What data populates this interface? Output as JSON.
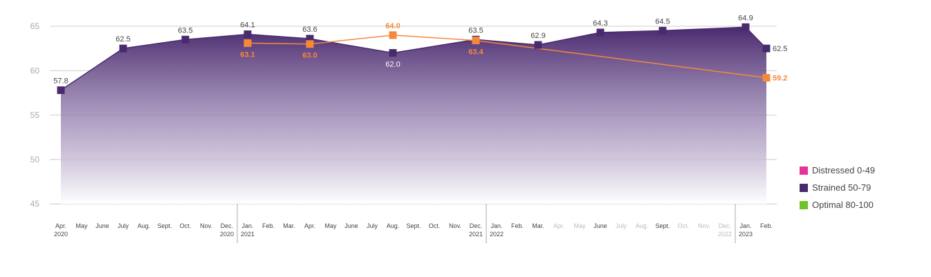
{
  "chart_data": {
    "type": "area",
    "ylim": [
      45,
      66
    ],
    "yticks": [
      45,
      50,
      55,
      60,
      65
    ],
    "grid": true,
    "legend_position": "right",
    "colors": {
      "strained": "#4a2a6e",
      "orange": "#f5893b",
      "distressed": "#e8329b",
      "optimal": "#6cc428",
      "grid": "#cccccc",
      "tick_dark": "#444444",
      "tick_light": "#bbbbbb"
    },
    "months": [
      {
        "m": "Apr.",
        "y": "2020"
      },
      {
        "m": "May",
        "y": ""
      },
      {
        "m": "June",
        "y": ""
      },
      {
        "m": "July",
        "y": ""
      },
      {
        "m": "Aug.",
        "y": ""
      },
      {
        "m": "Sept.",
        "y": ""
      },
      {
        "m": "Oct.",
        "y": ""
      },
      {
        "m": "Nov.",
        "y": ""
      },
      {
        "m": "Dec.",
        "y": "2020"
      },
      {
        "m": "Jan.",
        "y": "2021"
      },
      {
        "m": "Feb.",
        "y": ""
      },
      {
        "m": "Mar.",
        "y": ""
      },
      {
        "m": "Apr.",
        "y": ""
      },
      {
        "m": "May",
        "y": ""
      },
      {
        "m": "June",
        "y": ""
      },
      {
        "m": "July",
        "y": ""
      },
      {
        "m": "Aug.",
        "y": ""
      },
      {
        "m": "Sept.",
        "y": ""
      },
      {
        "m": "Oct.",
        "y": ""
      },
      {
        "m": "Nov.",
        "y": ""
      },
      {
        "m": "Dec.",
        "y": "2021"
      },
      {
        "m": "Jan.",
        "y": "2022"
      },
      {
        "m": "Feb.",
        "y": ""
      },
      {
        "m": "Mar.",
        "y": ""
      },
      {
        "m": "Apr.",
        "y": ""
      },
      {
        "m": "May",
        "y": ""
      },
      {
        "m": "June",
        "y": ""
      },
      {
        "m": "July",
        "y": ""
      },
      {
        "m": "Aug.",
        "y": ""
      },
      {
        "m": "Sept.",
        "y": ""
      },
      {
        "m": "Oct.",
        "y": ""
      },
      {
        "m": "Nov.",
        "y": ""
      },
      {
        "m": "Dec.",
        "y": "2022"
      },
      {
        "m": "Jan.",
        "y": "2023"
      },
      {
        "m": "Feb.",
        "y": ""
      }
    ],
    "faded_months": [
      24,
      25,
      27,
      28,
      30,
      31,
      32
    ],
    "year_dividers": [
      9,
      21,
      33
    ],
    "series": [
      {
        "key": "strained",
        "points": [
          {
            "i": 0,
            "v": 57.8
          },
          {
            "i": 3,
            "v": 62.5
          },
          {
            "i": 6,
            "v": 63.5
          },
          {
            "i": 9,
            "v": 64.1
          },
          {
            "i": 12,
            "v": 63.6
          },
          {
            "i": 16,
            "v": 62.0
          },
          {
            "i": 20,
            "v": 63.5
          },
          {
            "i": 23,
            "v": 62.9
          },
          {
            "i": 26,
            "v": 64.3
          },
          {
            "i": 29,
            "v": 64.5
          },
          {
            "i": 33,
            "v": 64.9
          },
          {
            "i": 34,
            "v": 62.5
          }
        ],
        "labels": [
          "57.8",
          "62.5",
          "63.5",
          "64.1",
          "63.6",
          "62.0",
          "63.5",
          "62.9",
          "64.3",
          "64.5",
          "64.9",
          "62.5"
        ]
      },
      {
        "key": "orange",
        "points": [
          {
            "i": 9,
            "v": 63.1
          },
          {
            "i": 12,
            "v": 63.0
          },
          {
            "i": 16,
            "v": 64.0
          },
          {
            "i": 20,
            "v": 63.4
          },
          {
            "i": 34,
            "v": 59.2
          }
        ],
        "labels": [
          "63.1",
          "63.0",
          "64.0",
          "63.4",
          "59.2"
        ]
      }
    ]
  },
  "legend": {
    "items": [
      {
        "label": "Distressed 0-49",
        "color": "#e8329b"
      },
      {
        "label": "Strained 50-79",
        "color": "#4a2a6e"
      },
      {
        "label": "Optimal 80-100",
        "color": "#6cc428"
      }
    ]
  }
}
